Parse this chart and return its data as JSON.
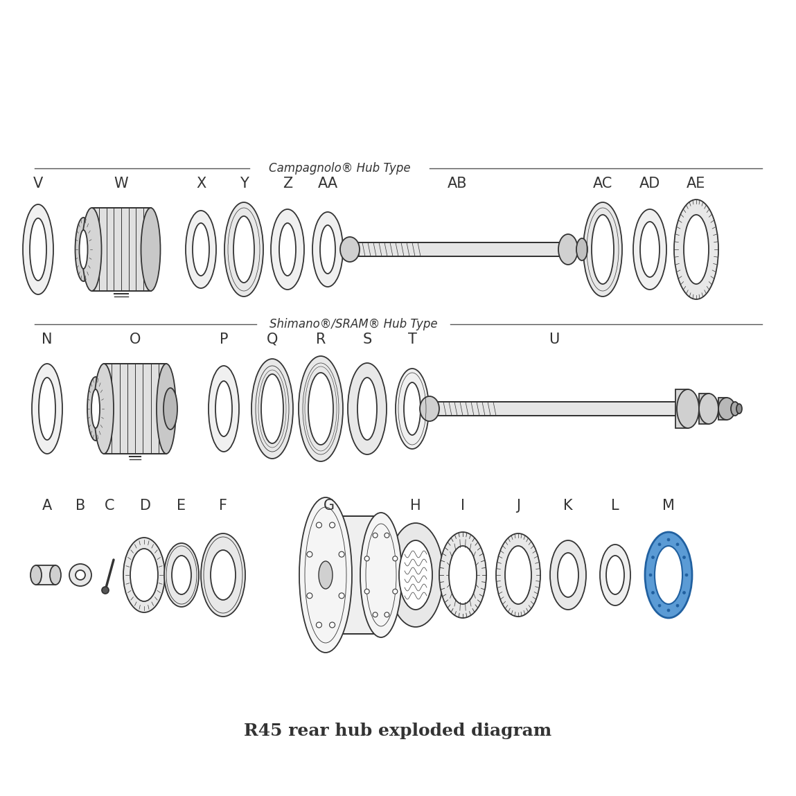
{
  "title": "R45 rear hub exploded diagram",
  "title_fontsize": 18,
  "title_fontweight": "bold",
  "background_color": "#ffffff",
  "line_color": "#333333",
  "blue_fill": "#5b9bd5",
  "blue_stroke": "#2060a0",
  "label_fontsize": 15,
  "sep_fontsize": 12,
  "row1_labels": [
    "A",
    "B",
    "C",
    "D",
    "E",
    "F",
    "G",
    "H",
    "I",
    "J",
    "K",
    "L",
    "M"
  ],
  "row2_labels": [
    "N",
    "O",
    "P",
    "Q",
    "R",
    "S",
    "T",
    "U"
  ],
  "row3_labels": [
    "V",
    "W",
    "X",
    "Y",
    "Z",
    "AA",
    "AB",
    "AC",
    "AD",
    "AE"
  ],
  "shimano_text": "Shimano®/SRAM® Hub Type",
  "campagnolo_text": "Campagnolo® Hub Type"
}
